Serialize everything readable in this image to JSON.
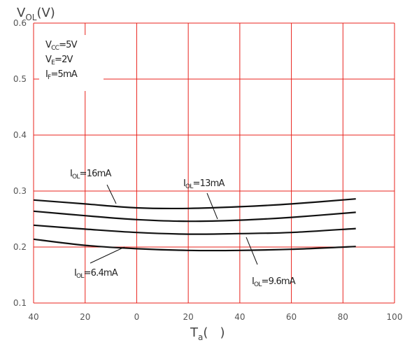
{
  "chart_data": {
    "type": "line",
    "title": "",
    "xlabel": {
      "main": "T",
      "sub": "a",
      "unit": "(   )"
    },
    "ylabel": {
      "main": "V",
      "sub": "OL",
      "unit": "(V)"
    },
    "xlim": [
      -40,
      100
    ],
    "ylim": [
      0.1,
      0.6
    ],
    "x_ticks": [
      -40,
      -20,
      0,
      20,
      40,
      60,
      80,
      100
    ],
    "x_tick_labels": [
      "40",
      "20",
      "0",
      "20",
      "40",
      "60",
      "80",
      "100"
    ],
    "y_ticks": [
      0.1,
      0.2,
      0.3,
      0.4,
      0.5,
      0.6
    ],
    "y_tick_labels": [
      "0.1",
      "0.2",
      "0.3",
      "0.4",
      "0.5",
      "0.6"
    ],
    "grid": true,
    "colors": {
      "grid": "#e8231d",
      "line": "#111111",
      "text": "#222222",
      "tick": "#555555"
    },
    "conditions": [
      {
        "main": "V",
        "sub": "CC",
        "rest": "=5V"
      },
      {
        "main": "V",
        "sub": "E",
        "rest": "=2V"
      },
      {
        "main": "I",
        "sub": "F",
        "rest": "=5mA"
      }
    ],
    "series": [
      {
        "name": "I_OL=16mA",
        "label": {
          "main": "I",
          "sub": "OL",
          "rest": "=16mA"
        },
        "x": [
          -40,
          -20,
          0,
          20,
          40,
          60,
          85
        ],
        "y": [
          0.284,
          0.277,
          0.27,
          0.269,
          0.272,
          0.277,
          0.286
        ]
      },
      {
        "name": "I_OL=13mA",
        "label": {
          "main": "I",
          "sub": "OL",
          "rest": "=13mA"
        },
        "x": [
          -40,
          -20,
          0,
          20,
          40,
          60,
          85
        ],
        "y": [
          0.264,
          0.256,
          0.249,
          0.246,
          0.248,
          0.253,
          0.262
        ]
      },
      {
        "name": "I_OL=9.6mA",
        "label": {
          "main": "I",
          "sub": "OL",
          "rest": "=9.6mA"
        },
        "x": [
          -40,
          -20,
          0,
          20,
          40,
          60,
          85
        ],
        "y": [
          0.239,
          0.232,
          0.226,
          0.223,
          0.224,
          0.226,
          0.233
        ]
      },
      {
        "name": "I_OL=6.4mA",
        "label": {
          "main": "I",
          "sub": "OL",
          "rest": "=6.4mA"
        },
        "x": [
          -40,
          -20,
          0,
          20,
          40,
          60,
          85
        ],
        "y": [
          0.214,
          0.203,
          0.197,
          0.194,
          0.194,
          0.196,
          0.201
        ]
      }
    ]
  }
}
